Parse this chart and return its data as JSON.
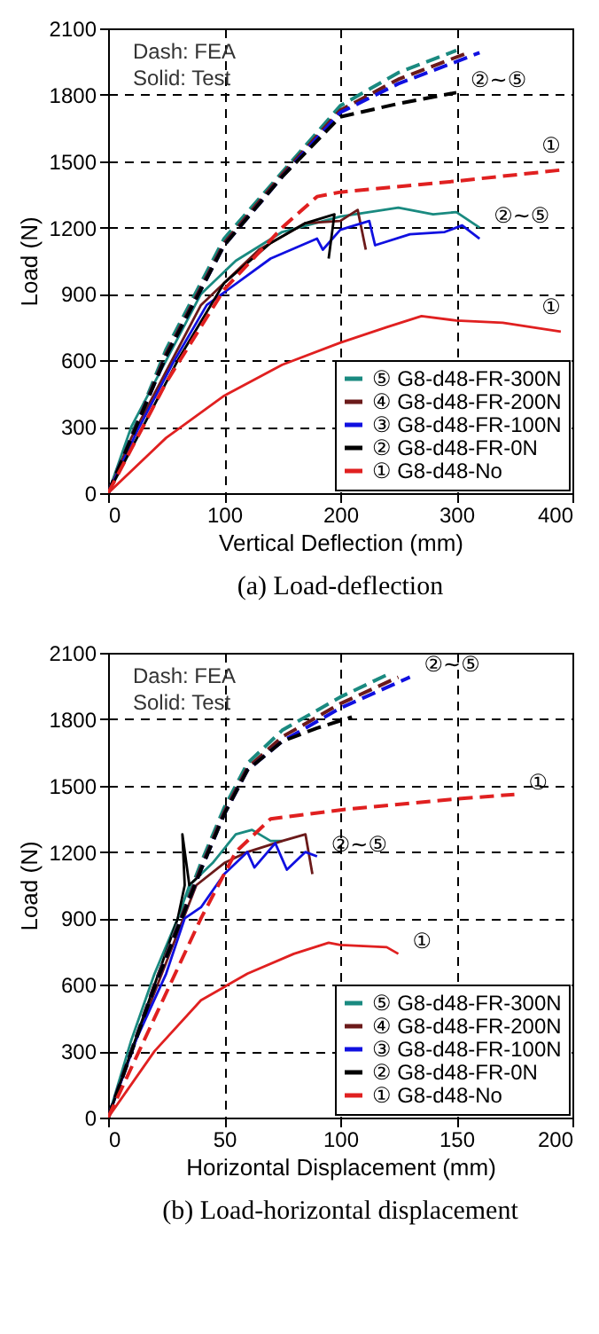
{
  "chart_data": [
    {
      "type": "line",
      "title": "(a) Load-deflection",
      "xlabel": "Vertical Deflection (mm)",
      "ylabel": "Load (N)",
      "xlim": [
        0,
        400
      ],
      "ylim": [
        0,
        2100
      ],
      "xticks": [
        0,
        100,
        200,
        300,
        400
      ],
      "yticks": [
        0,
        300,
        600,
        900,
        1200,
        1500,
        1800,
        2100
      ],
      "grid": true,
      "legend": "bottom right",
      "annotations": [
        "Dash: FEA",
        "Solid: Test",
        {
          "text": "②~⑤",
          "x": 300,
          "y": 1810
        },
        {
          "text": "①",
          "x": 390,
          "y": 1460
        },
        {
          "text": "②~⑤",
          "x": 320,
          "y": 1200
        },
        {
          "text": "①",
          "x": 390,
          "y": 730
        }
      ],
      "series": [
        {
          "name": "⑤ G8-d48-FR-300N",
          "color": "#1a8a80",
          "line_style": "solid",
          "x": [
            0,
            20,
            50,
            80,
            110,
            150,
            200,
            250,
            280,
            300,
            320
          ],
          "values": [
            0,
            300,
            600,
            900,
            1050,
            1180,
            1250,
            1290,
            1260,
            1270,
            1200
          ]
        },
        {
          "name": "④ G8-d48-FR-200N",
          "color": "#6b1a1a",
          "line_style": "solid",
          "x": [
            0,
            20,
            50,
            80,
            130,
            170,
            200,
            215,
            222
          ],
          "values": [
            0,
            250,
            550,
            850,
            1100,
            1220,
            1230,
            1280,
            1100
          ]
        },
        {
          "name": "③ G8-d48-FR-100N",
          "color": "#1010e0",
          "line_style": "solid",
          "x": [
            0,
            25,
            55,
            85,
            140,
            180,
            185,
            200,
            225,
            230,
            260,
            290,
            305,
            320
          ],
          "values": [
            0,
            280,
            580,
            850,
            1060,
            1150,
            1100,
            1190,
            1230,
            1120,
            1170,
            1180,
            1210,
            1150
          ]
        },
        {
          "name": "② G8-d48-FR-0N",
          "color": "#000000",
          "line_style": "solid",
          "x": [
            0,
            30,
            60,
            100,
            140,
            170,
            195,
            190
          ],
          "values": [
            0,
            300,
            600,
            950,
            1130,
            1220,
            1260,
            1060
          ]
        },
        {
          "name": "① G8-d48-No",
          "color": "#e02020",
          "line_style": "solid",
          "x": [
            0,
            50,
            100,
            150,
            200,
            240,
            270,
            300,
            340,
            390
          ],
          "values": [
            0,
            250,
            440,
            580,
            680,
            750,
            800,
            780,
            770,
            730
          ]
        },
        {
          "color": "#1a8a80",
          "line_style": "dashed",
          "x": [
            0,
            50,
            100,
            150,
            200,
            250,
            300
          ],
          "values": [
            0,
            650,
            1150,
            1450,
            1750,
            1900,
            2000
          ]
        },
        {
          "color": "#6b1a1a",
          "line_style": "dashed",
          "x": [
            0,
            50,
            100,
            150,
            200,
            250,
            310
          ],
          "values": [
            0,
            630,
            1130,
            1440,
            1730,
            1870,
            1990
          ]
        },
        {
          "color": "#1010e0",
          "line_style": "dashed",
          "x": [
            0,
            50,
            100,
            150,
            200,
            250,
            320
          ],
          "values": [
            0,
            620,
            1120,
            1430,
            1720,
            1850,
            1990
          ]
        },
        {
          "color": "#000000",
          "line_style": "dashed",
          "x": [
            0,
            50,
            100,
            150,
            200,
            250,
            300
          ],
          "values": [
            0,
            620,
            1120,
            1430,
            1700,
            1760,
            1810
          ]
        },
        {
          "color": "#e02020",
          "line_style": "dashed",
          "x": [
            0,
            50,
            100,
            150,
            180,
            200,
            300,
            390
          ],
          "values": [
            0,
            500,
            920,
            1200,
            1340,
            1360,
            1410,
            1460
          ]
        }
      ]
    },
    {
      "type": "line",
      "title": "(b) Load-horizontal displacement",
      "xlabel": "Horizontal Displacement (mm)",
      "ylabel": "Load (N)",
      "xlim": [
        0,
        200
      ],
      "ylim": [
        0,
        2100
      ],
      "xticks": [
        0,
        50,
        100,
        150,
        200
      ],
      "yticks": [
        0,
        300,
        600,
        900,
        1200,
        1500,
        1800,
        2100
      ],
      "grid": true,
      "legend": "bottom right",
      "annotations": [
        "Dash: FEA",
        "Solid: Test",
        {
          "text": "②~⑤",
          "x": 130,
          "y": 1990
        },
        {
          "text": "①",
          "x": 175,
          "y": 1460
        },
        {
          "text": "②~⑤",
          "x": 90,
          "y": 1180
        },
        {
          "text": "①",
          "x": 125,
          "y": 740
        }
      ],
      "series": [
        {
          "name": "⑤ G8-d48-FR-300N",
          "color": "#1a8a80",
          "line_style": "solid",
          "x": [
            0,
            10,
            20,
            30,
            35,
            45,
            55,
            62,
            70,
            75
          ],
          "values": [
            0,
            350,
            650,
            900,
            1050,
            1150,
            1280,
            1300,
            1250,
            1250
          ]
        },
        {
          "name": "④ G8-d48-FR-200N",
          "color": "#6b1a1a",
          "line_style": "solid",
          "x": [
            0,
            12,
            25,
            38,
            50,
            60,
            75,
            85,
            88
          ],
          "values": [
            0,
            350,
            700,
            1050,
            1150,
            1200,
            1250,
            1280,
            1100
          ]
        },
        {
          "name": "③ G8-d48-FR-100N",
          "color": "#1010e0",
          "line_style": "solid",
          "x": [
            0,
            12,
            25,
            33,
            40,
            50,
            60,
            63,
            72,
            77,
            85,
            90
          ],
          "values": [
            0,
            350,
            650,
            900,
            950,
            1100,
            1200,
            1130,
            1240,
            1120,
            1200,
            1180
          ]
        },
        {
          "name": "② G8-d48-FR-0N",
          "color": "#000000",
          "line_style": "solid",
          "x": [
            0,
            10,
            20,
            30,
            33,
            32,
            35,
            40
          ],
          "values": [
            0,
            300,
            600,
            900,
            1050,
            1280,
            1050,
            1100
          ]
        },
        {
          "name": "① G8-d48-No",
          "color": "#e02020",
          "line_style": "solid",
          "x": [
            0,
            20,
            40,
            60,
            80,
            95,
            100,
            120,
            125
          ],
          "values": [
            0,
            300,
            530,
            650,
            740,
            790,
            780,
            770,
            740
          ]
        },
        {
          "color": "#1a8a80",
          "line_style": "dashed",
          "x": [
            0,
            20,
            40,
            50,
            60,
            75,
            100,
            120
          ],
          "values": [
            0,
            600,
            1150,
            1400,
            1600,
            1750,
            1900,
            2000
          ]
        },
        {
          "color": "#6b1a1a",
          "line_style": "dashed",
          "x": [
            0,
            20,
            40,
            50,
            60,
            75,
            100,
            125
          ],
          "values": [
            0,
            600,
            1130,
            1380,
            1580,
            1720,
            1870,
            1990
          ]
        },
        {
          "color": "#1010e0",
          "line_style": "dashed",
          "x": [
            0,
            20,
            40,
            50,
            60,
            75,
            100,
            130
          ],
          "values": [
            0,
            590,
            1120,
            1370,
            1570,
            1700,
            1850,
            1990
          ]
        },
        {
          "color": "#000000",
          "line_style": "dashed",
          "x": [
            0,
            20,
            40,
            50,
            60,
            75,
            90,
            105
          ],
          "values": [
            0,
            590,
            1120,
            1370,
            1570,
            1700,
            1760,
            1810
          ]
        },
        {
          "color": "#e02020",
          "line_style": "dashed",
          "x": [
            0,
            20,
            40,
            55,
            70,
            100,
            150,
            175
          ],
          "values": [
            0,
            450,
            900,
            1200,
            1350,
            1390,
            1440,
            1460
          ]
        }
      ]
    }
  ]
}
